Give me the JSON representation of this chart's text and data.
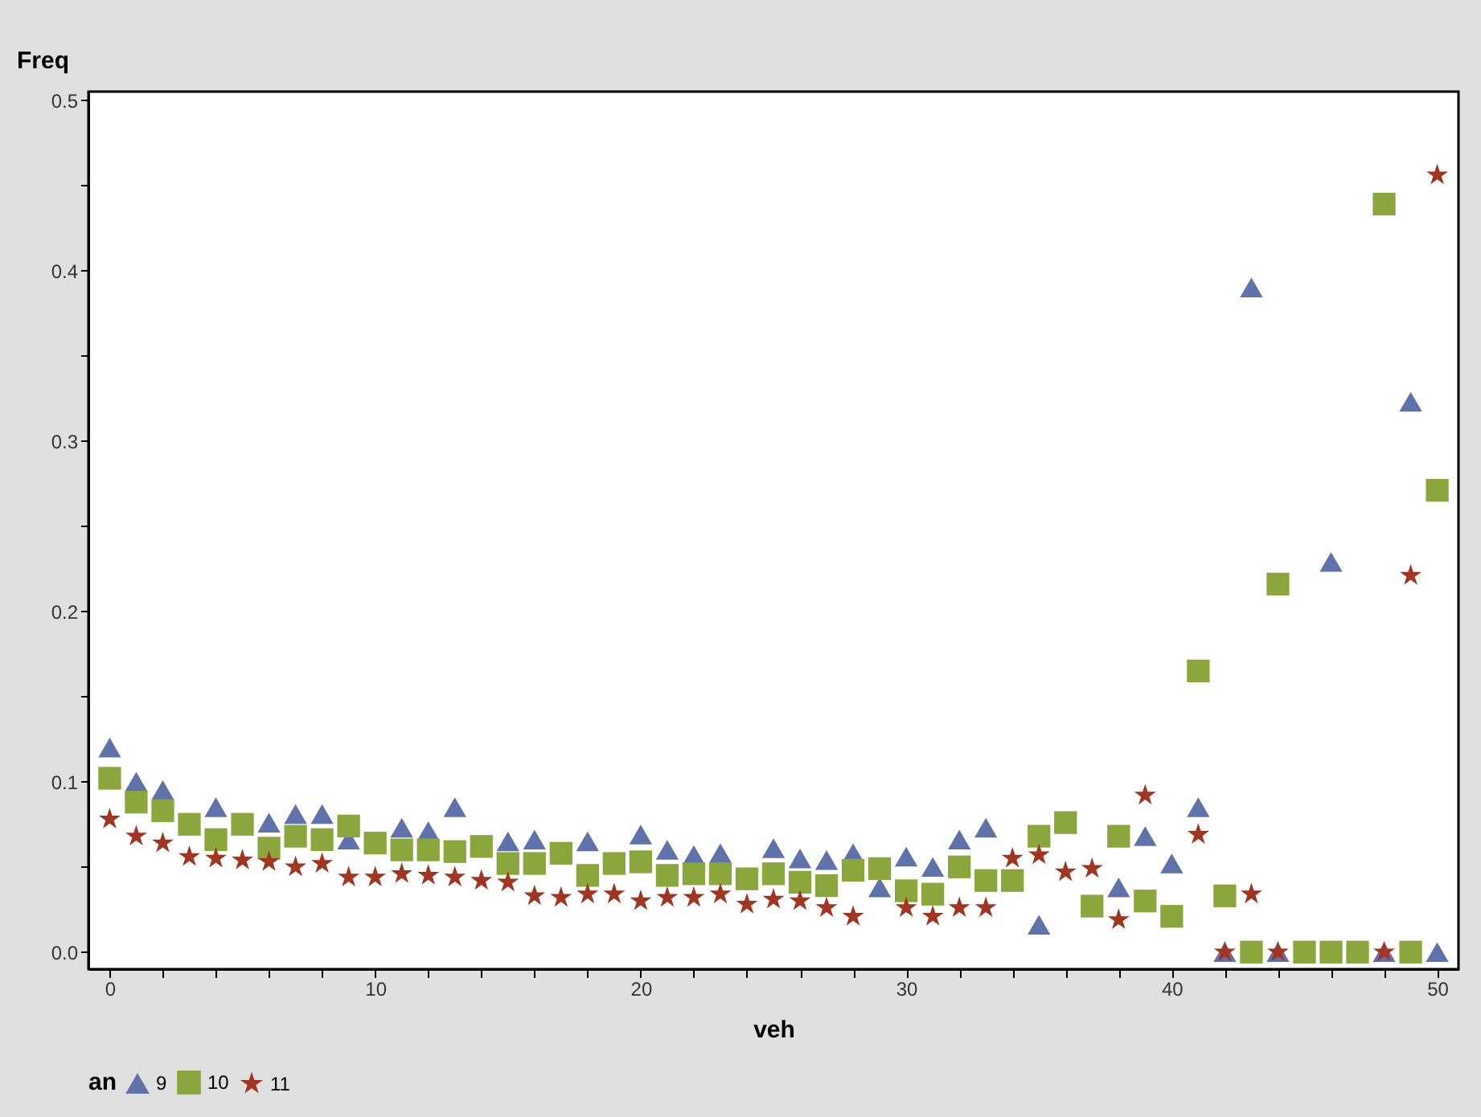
{
  "chart_data": {
    "type": "scatter",
    "ylabel": "Freq",
    "xlabel": "veh",
    "legend_title": "an",
    "legend": "bottom",
    "x": [
      0,
      1,
      2,
      3,
      4,
      5,
      6,
      7,
      8,
      9,
      10,
      11,
      12,
      13,
      14,
      15,
      16,
      17,
      18,
      19,
      20,
      21,
      22,
      23,
      24,
      25,
      26,
      27,
      28,
      29,
      30,
      31,
      32,
      33,
      34,
      35,
      36,
      37,
      38,
      39,
      40,
      41,
      42,
      43,
      44,
      45,
      46,
      47,
      48,
      49,
      50
    ],
    "xlim": [
      -0.8,
      50.8
    ],
    "xticks": [
      0,
      {
        "value": 2,
        "label": null
      },
      {
        "value": 4,
        "label": null
      },
      {
        "value": 6,
        "label": null
      },
      {
        "value": 8,
        "label": null
      },
      10,
      {
        "value": 12,
        "label": null
      },
      {
        "value": 14,
        "label": null
      },
      {
        "value": 16,
        "label": null
      },
      {
        "value": 18,
        "label": null
      },
      20,
      {
        "value": 22,
        "label": null
      },
      {
        "value": 24,
        "label": null
      },
      {
        "value": 26,
        "label": null
      },
      {
        "value": 28,
        "label": null
      },
      30,
      {
        "value": 32,
        "label": null
      },
      {
        "value": 34,
        "label": null
      },
      {
        "value": 36,
        "label": null
      },
      {
        "value": 38,
        "label": null
      },
      40,
      {
        "value": 42,
        "label": null
      },
      {
        "value": 44,
        "label": null
      },
      {
        "value": 46,
        "label": null
      },
      {
        "value": 48,
        "label": null
      },
      50
    ],
    "ylim": [
      -0.01,
      0.505
    ],
    "yticks": [
      {
        "value": 0,
        "label": "0.0"
      },
      {
        "value": 0.05,
        "label": null
      },
      0.1,
      {
        "value": 0.15,
        "label": null
      },
      0.2,
      {
        "value": 0.25,
        "label": null
      },
      0.3,
      {
        "value": 0.35,
        "label": null
      },
      0.4,
      {
        "value": 0.45,
        "label": null
      },
      0.5
    ],
    "grid": false,
    "series": [
      {
        "name": "9",
        "color": "#5f72aa",
        "marker": "triangle",
        "values": [
          0.12,
          0.1,
          0.095,
          null,
          0.085,
          null,
          0.076,
          0.081,
          0.081,
          0.066,
          null,
          0.073,
          0.071,
          0.085,
          null,
          0.065,
          0.066,
          null,
          0.065,
          null,
          0.069,
          0.06,
          0.057,
          0.058,
          null,
          0.061,
          0.055,
          0.054,
          0.058,
          0.038,
          0.056,
          0.05,
          0.066,
          0.073,
          null,
          0.016,
          null,
          null,
          0.038,
          0.068,
          0.052,
          0.085,
          0,
          0.39,
          0,
          null,
          0.229,
          null,
          0,
          0.323,
          0
        ]
      },
      {
        "name": "10",
        "color": "#8ba63c",
        "marker": "square",
        "values": [
          0.102,
          0.088,
          0.083,
          0.075,
          0.066,
          0.075,
          0.061,
          0.068,
          0.066,
          0.074,
          0.064,
          0.06,
          0.06,
          0.059,
          0.062,
          0.052,
          0.052,
          0.058,
          0.045,
          0.052,
          0.053,
          0.045,
          0.046,
          0.046,
          0.043,
          0.046,
          0.041,
          0.039,
          0.048,
          0.049,
          0.036,
          0.034,
          0.05,
          0.042,
          0.042,
          0.068,
          0.076,
          0.027,
          0.068,
          0.03,
          0.021,
          0.165,
          0.033,
          0,
          0.216,
          0,
          0,
          0,
          0.439,
          0,
          0.271
        ]
      },
      {
        "name": "11",
        "color": "#a23522",
        "marker": "star",
        "values": [
          0.078,
          0.068,
          0.064,
          0.056,
          0.055,
          0.054,
          0.053,
          0.05,
          0.052,
          0.044,
          0.044,
          0.046,
          0.045,
          0.044,
          0.042,
          0.041,
          0.033,
          0.032,
          0.034,
          0.034,
          0.03,
          0.032,
          0.032,
          0.034,
          0.028,
          0.031,
          0.03,
          0.026,
          0.021,
          null,
          0.026,
          0.021,
          0.026,
          0.026,
          0.055,
          0.057,
          0.047,
          0.049,
          0.019,
          0.092,
          null,
          0.069,
          0,
          0.034,
          0,
          null,
          null,
          null,
          0,
          0.221,
          0.456
        ]
      }
    ]
  }
}
